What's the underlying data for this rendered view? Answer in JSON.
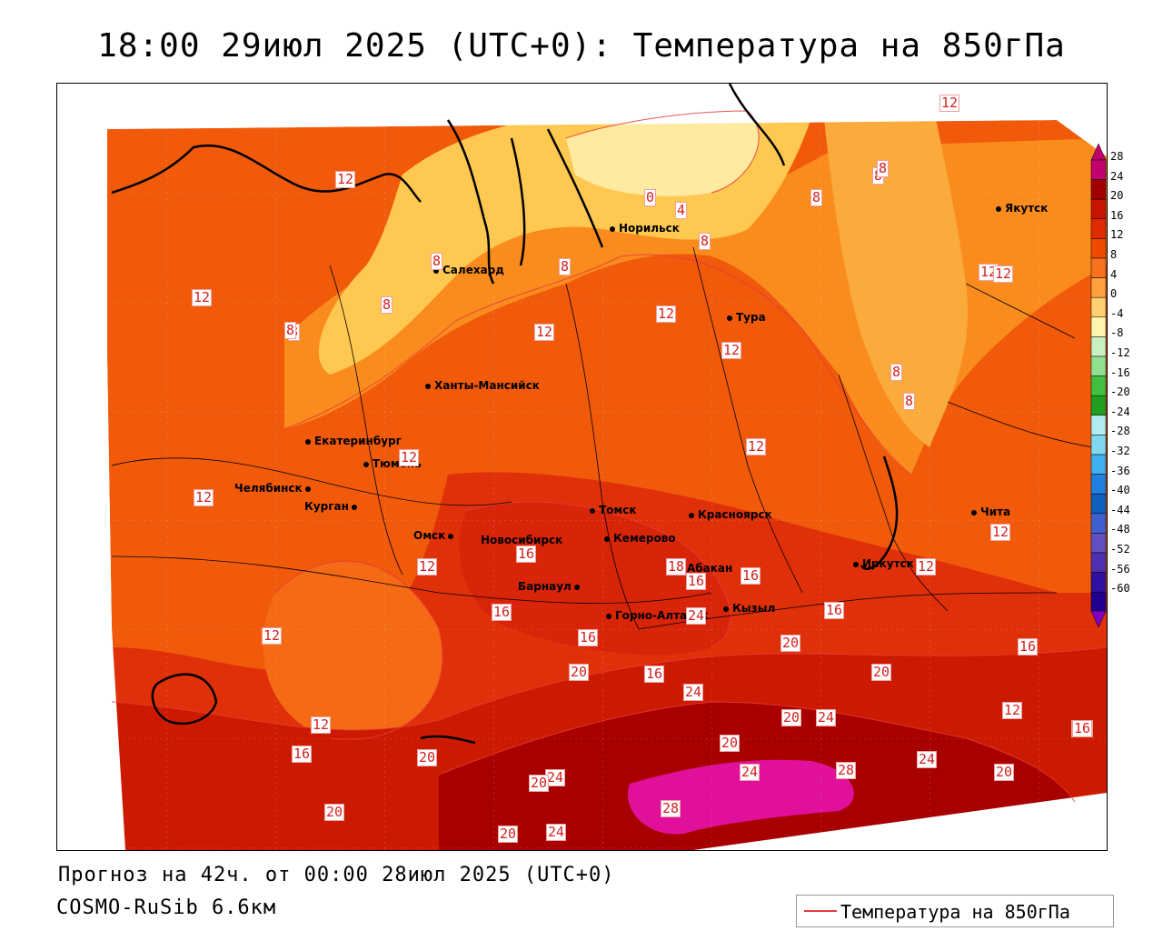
{
  "header": {
    "title": "18:00 29июл 2025 (UTC+0): Температура на 850гПа"
  },
  "footer": {
    "forecast_line": "Прогноз на 42ч. от 00:00 28июл 2025 (UTC+0)",
    "model_line": "COSMO-RuSib 6.6км"
  },
  "legend": {
    "label": "Температура на 850гПа",
    "line_color": "#e83a3a"
  },
  "colors": {
    "t28": "#e0109a",
    "t24": "#a80000",
    "t20": "#cc1a00",
    "t16": "#e0300a",
    "t12": "#f05a0a",
    "t8": "#fa8c1e",
    "t4": "#ffc850",
    "t0": "#ffeaa0",
    "isoline": "#e83a3a"
  },
  "cities": [
    {
      "name": "Якутск"
    },
    {
      "name": "Норильск"
    },
    {
      "name": "Салехард"
    },
    {
      "name": "Тура"
    },
    {
      "name": "Ханты-Мансийск"
    },
    {
      "name": "Екатеринбург"
    },
    {
      "name": "Тюмень"
    },
    {
      "name": "Челябинск"
    },
    {
      "name": "Курган"
    },
    {
      "name": "Омск"
    },
    {
      "name": "Томск"
    },
    {
      "name": "Красноярск"
    },
    {
      "name": "Новосибирск"
    },
    {
      "name": "Кемерово"
    },
    {
      "name": "Абакан"
    },
    {
      "name": "Барнаул"
    },
    {
      "name": "Горно-Алтайск"
    },
    {
      "name": "Кызыл"
    },
    {
      "name": "Иркутск"
    },
    {
      "name": "Чита"
    }
  ],
  "isoline_labels": [
    "12",
    "12",
    "8",
    "8",
    "8",
    "12",
    "0",
    "4",
    "8",
    "12",
    "8",
    "8",
    "12",
    "8",
    "12",
    "12",
    "12",
    "12",
    "8",
    "8",
    "12",
    "12",
    "12",
    "12",
    "16",
    "18",
    "16",
    "16",
    "16",
    "12",
    "12",
    "16",
    "16",
    "16",
    "20",
    "16",
    "20",
    "24",
    "20",
    "24",
    "16",
    "20",
    "20",
    "24",
    "24",
    "28",
    "24",
    "20",
    "16",
    "20",
    "20",
    "24",
    "28",
    "20",
    "24",
    "20",
    "12",
    "12",
    "16",
    "8",
    "8",
    "16"
  ],
  "colorbar": {
    "labels": [
      "28",
      "24",
      "20",
      "16",
      "12",
      "8",
      "4",
      "0",
      "-4",
      "-8",
      "-12",
      "-16",
      "-20",
      "-24",
      "-28",
      "-32",
      "-36",
      "-40",
      "-44",
      "-48",
      "-52",
      "-56",
      "-60"
    ],
    "colors": [
      "#c0006e",
      "#a00000",
      "#c81400",
      "#e02a00",
      "#f04a00",
      "#f87020",
      "#ffa040",
      "#ffd070",
      "#fff4b0",
      "#c8f0c0",
      "#90e090",
      "#40c040",
      "#20a020",
      "#b0ecf0",
      "#80d8f0",
      "#40b0f0",
      "#2080e0",
      "#1060c0",
      "#4060d0",
      "#6050c0",
      "#5030b0",
      "#3010a0",
      "#200090"
    ]
  }
}
